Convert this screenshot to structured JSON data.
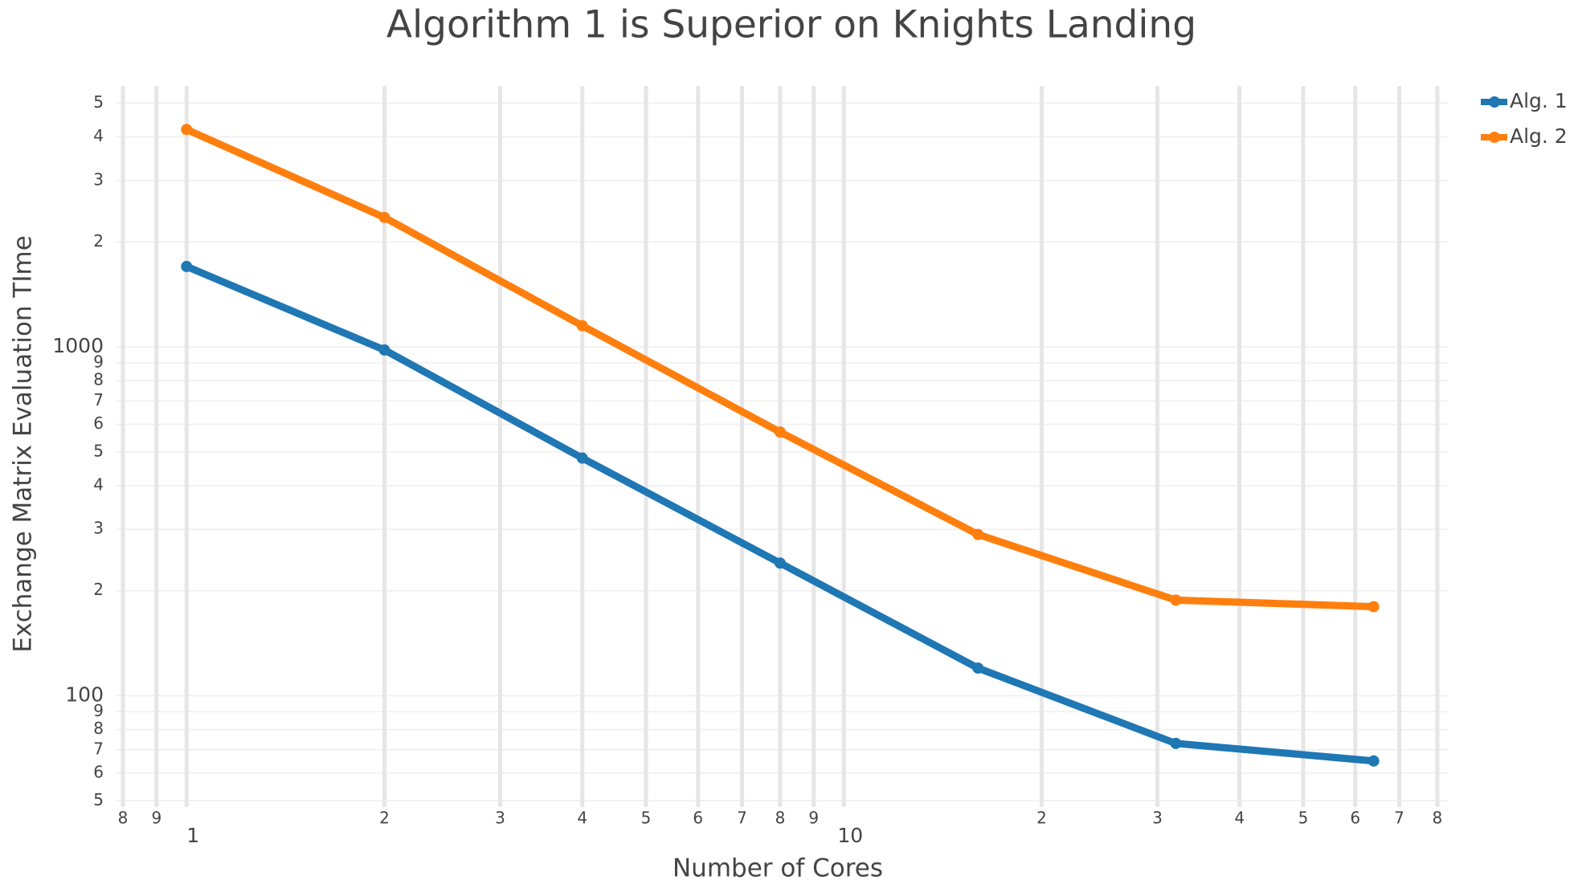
{
  "chart_data": {
    "type": "line",
    "title": "Algorithm 1 is Superior on Knights Landing",
    "x_label": "Number of Cores",
    "y_label": "Exchange Matrix Evaluation TIme",
    "x": [
      1,
      2,
      4,
      8,
      16,
      32,
      64
    ],
    "series": [
      {
        "name": "Alg. 1",
        "color": "#1f77b4",
        "values": [
          1700,
          980,
          480,
          240,
          120,
          73,
          65
        ]
      },
      {
        "name": "Alg. 2",
        "color": "#ff7f0e",
        "values": [
          4200,
          2350,
          1150,
          570,
          290,
          188,
          180
        ]
      }
    ],
    "x_scale": "log",
    "y_scale": "log",
    "xlim": [
      0.78,
      83
    ],
    "ylim": [
      48,
      5600
    ],
    "xticks": [
      {
        "value": 0.8,
        "label": "8"
      },
      {
        "value": 0.9,
        "label": "9"
      },
      1,
      {
        "value": 2,
        "label": "2"
      },
      {
        "value": 3,
        "label": "3"
      },
      {
        "value": 4,
        "label": "4"
      },
      {
        "value": 5,
        "label": "5"
      },
      {
        "value": 6,
        "label": "6"
      },
      {
        "value": 7,
        "label": "7"
      },
      {
        "value": 8,
        "label": "8"
      },
      {
        "value": 9,
        "label": "9"
      },
      10,
      {
        "value": 20,
        "label": "2"
      },
      {
        "value": 30,
        "label": "3"
      },
      {
        "value": 40,
        "label": "4"
      },
      {
        "value": 50,
        "label": "5"
      },
      {
        "value": 60,
        "label": "6"
      },
      {
        "value": 70,
        "label": "7"
      },
      {
        "value": 80,
        "label": "8"
      }
    ],
    "yticks": [
      {
        "value": 50,
        "label": "5"
      },
      {
        "value": 60,
        "label": "6"
      },
      {
        "value": 70,
        "label": "7"
      },
      {
        "value": 80,
        "label": "8"
      },
      {
        "value": 90,
        "label": "9"
      },
      100,
      {
        "value": 200,
        "label": "2"
      },
      {
        "value": 300,
        "label": "3"
      },
      {
        "value": 400,
        "label": "4"
      },
      {
        "value": 500,
        "label": "5"
      },
      {
        "value": 600,
        "label": "6"
      },
      {
        "value": 700,
        "label": "7"
      },
      {
        "value": 800,
        "label": "8"
      },
      {
        "value": 900,
        "label": "9"
      },
      1000,
      {
        "value": 2000,
        "label": "2"
      },
      {
        "value": 3000,
        "label": "3"
      },
      {
        "value": 4000,
        "label": "4"
      },
      {
        "value": 5000,
        "label": "5"
      }
    ],
    "grid": true,
    "legend": "top-right"
  }
}
